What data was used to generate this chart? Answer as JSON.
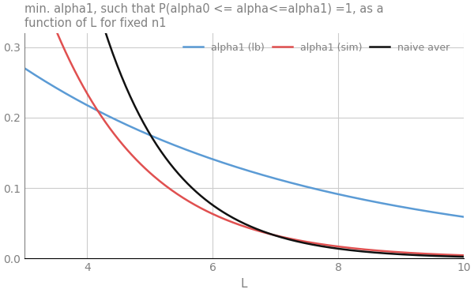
{
  "title": "min. alpha1, such that P(alpha0 <= alpha<=alpha1) =1, as a\nfunction of L for fixed n1",
  "xlabel": "L",
  "ylabel": "",
  "xlim": [
    3,
    10
  ],
  "ylim": [
    0.0,
    0.32
  ],
  "yticks": [
    0.0,
    0.1,
    0.2,
    0.3
  ],
  "xticks": [
    4,
    6,
    8,
    10
  ],
  "legend_labels": [
    "alpha1 (lb)",
    "alpha1 (sim)",
    "naive aver"
  ],
  "line_colors": [
    "#5B9BD5",
    "#E05050",
    "#111111"
  ],
  "background_color": "#FFFFFF",
  "grid_color": "#CCCCCC",
  "title_color": "#808080",
  "axes_color": "#808080",
  "curve_params": {
    "lb": {
      "C": 0.518,
      "r": 0.805
    },
    "sim": {
      "C": 3.2,
      "r": 0.52
    },
    "naive": {
      "C": 12.0,
      "r": 0.43
    }
  }
}
